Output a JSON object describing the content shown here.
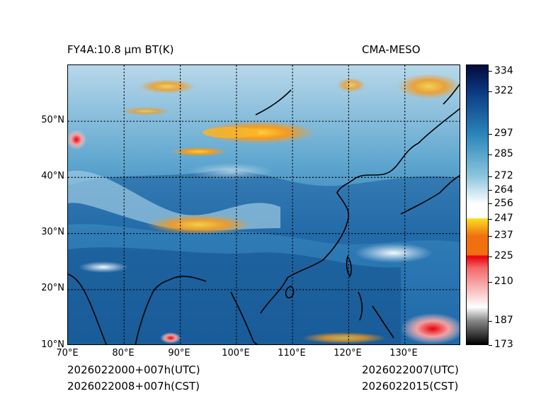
{
  "header": {
    "product": "FY4A:10.8 µm BT(K)",
    "model": "CMA-MESO"
  },
  "footer": {
    "init_utc": "2026022000+007h(UTC)",
    "init_cst": "2026022008+007h(CST)",
    "valid_utc": "2026022007(UTC)",
    "valid_cst": "2026022015(CST)"
  },
  "map": {
    "lon_range": [
      70,
      140
    ],
    "lat_range": [
      10,
      60
    ],
    "lon_ticks": [
      "70°E",
      "80°E",
      "90°E",
      "100°E",
      "110°E",
      "120°E",
      "130°E"
    ],
    "lat_ticks": [
      "10°N",
      "20°N",
      "30°N",
      "40°N",
      "50°N"
    ],
    "lon_values": [
      70,
      80,
      90,
      100,
      110,
      120,
      130
    ],
    "lat_values": [
      10,
      20,
      30,
      40,
      50
    ]
  },
  "colorbar": {
    "range": [
      173,
      338
    ],
    "ticks": [
      "334",
      "322",
      "297",
      "285",
      "272",
      "264",
      "256",
      "247",
      "237",
      "225",
      "210",
      "187",
      "173"
    ],
    "tick_values": [
      334,
      322,
      297,
      285,
      272,
      264,
      256,
      247,
      237,
      225,
      210,
      187,
      173
    ],
    "colors": {
      "cold": "#000000",
      "gray": "#888888",
      "red": "#e8000a",
      "orange": "#f07010",
      "yellow": "#fadc1e",
      "white": "#ffffff",
      "light_blue": "#8ec6de",
      "mid_blue": "#2a86bb",
      "dark_blue": "#0c3a82",
      "navy": "#020a3c"
    }
  }
}
